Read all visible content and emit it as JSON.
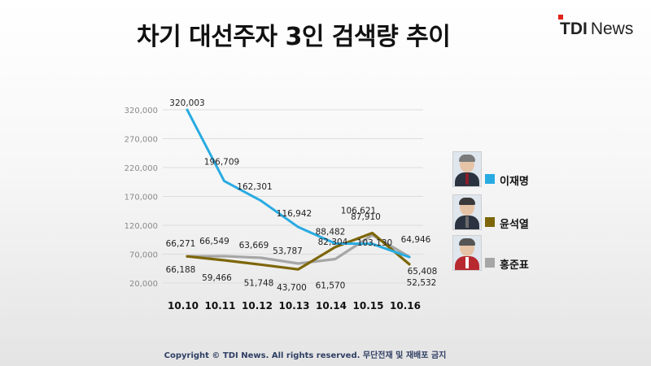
{
  "header": {
    "title": "차기 대선주자 3인 검색량 추이"
  },
  "brand": {
    "strong": "TDI",
    "light": "News",
    "accent": "#e2231a"
  },
  "footer": {
    "copyright": "Copyright © TDI News. All rights reserved. 무단전재 및 재배포 금지"
  },
  "legend": [
    {
      "name": "이재명",
      "color": "#29abe2",
      "icon": "person-photo-icon"
    },
    {
      "name": "윤석열",
      "color": "#7d6608",
      "icon": "person-photo-icon"
    },
    {
      "name": "홍준표",
      "color": "#a6a6a6",
      "icon": "person-photo-icon"
    }
  ],
  "chart_data": {
    "type": "line",
    "title": "차기 대선주자 3인 검색량 추이",
    "xlabel": "",
    "ylabel": "",
    "categories": [
      "10.10",
      "10.11",
      "10.12",
      "10.13",
      "10.14",
      "10.15",
      "10.16"
    ],
    "ylim": [
      20000,
      320000
    ],
    "yticks": [
      20000,
      70000,
      120000,
      170000,
      220000,
      270000,
      320000
    ],
    "ytick_labels": [
      "20,000",
      "70,000",
      "120,000",
      "170,000",
      "220,000",
      "270,000",
      "320,000"
    ],
    "grid": true,
    "legend_position": "right",
    "series": [
      {
        "name": "이재명",
        "color": "#29abe2",
        "values": [
          320003,
          196709,
          162301,
          116942,
          88482,
          87910,
          64946
        ]
      },
      {
        "name": "윤석열",
        "color": "#7d6608",
        "values": [
          66188,
          59466,
          51748,
          43700,
          82304,
          106621,
          52532
        ]
      },
      {
        "name": "홍준표",
        "color": "#a6a6a6",
        "values": [
          66271,
          66549,
          63669,
          53787,
          61570,
          103130,
          65408
        ]
      }
    ],
    "data_labels": [
      [
        "320,003",
        "196,709",
        "162,301",
        "116,942",
        "88,482",
        "87,910",
        "64,946"
      ],
      [
        "66,188",
        "59,466",
        "51,748",
        "43,700",
        "82,304",
        "106,621",
        "52,532"
      ],
      [
        "66,271",
        "66,549",
        "63,669",
        "53,787",
        "61,570",
        "103,130",
        "65,408"
      ]
    ]
  }
}
